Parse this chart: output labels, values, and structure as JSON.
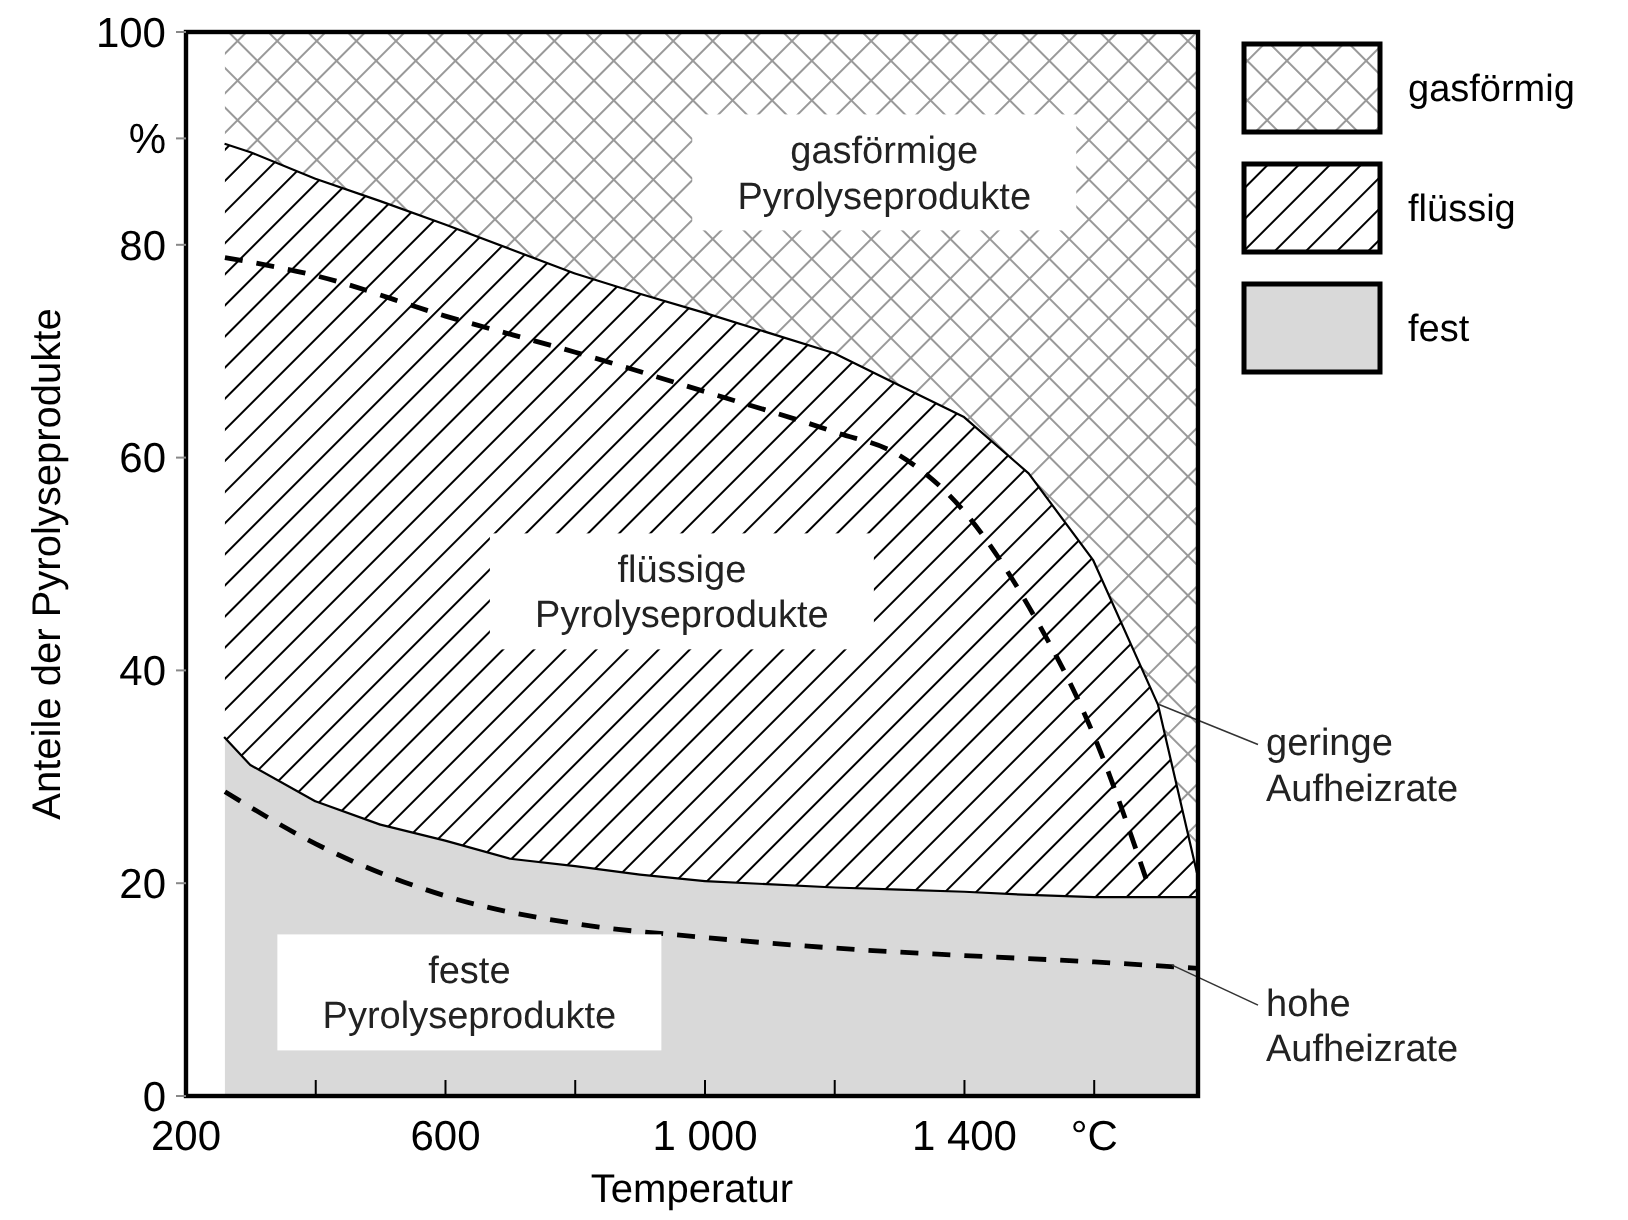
{
  "chart_data": {
    "type": "area",
    "stacked": true,
    "xlabel": "Temperatur",
    "ylabel": "Anteile der Pyrolyseprodukte",
    "x": [
      260,
      300,
      400,
      500,
      600,
      700,
      800,
      900,
      1000,
      1200,
      1300,
      1400,
      1500,
      1600,
      1700,
      1760
    ],
    "xlim": [
      200,
      1760
    ],
    "ylim": [
      0,
      100
    ],
    "xticks": [
      200,
      {
        "value": 400,
        "label": null
      },
      600,
      {
        "value": 800,
        "label": null
      },
      {
        "value": 1000,
        "label": "1 000"
      },
      {
        "value": 1200,
        "label": null
      },
      {
        "value": 1400,
        "label": "1 400"
      },
      {
        "value": 1600,
        "label": "°C"
      }
    ],
    "yticks": [
      0,
      20,
      40,
      60,
      80,
      {
        "value": 90,
        "label": "%"
      },
      100
    ],
    "legend": "top right",
    "grid": false,
    "series": [
      {
        "name": "fest",
        "color": "#d9d9d9",
        "values": [
          33.8,
          31.2,
          27.8,
          25.6,
          24.1,
          22.4,
          21.7,
          20.9,
          20.3,
          19.7,
          19.5,
          19.3,
          19.0,
          18.8,
          18.8,
          18.8
        ]
      },
      {
        "name": "flüssig",
        "color": "#000000",
        "values": [
          55.8,
          57.6,
          58.5,
          58.6,
          57.9,
          57.3,
          55.7,
          54.6,
          53.4,
          50.2,
          47.4,
          44.6,
          39.6,
          31.6,
          18.0,
          2.2
        ]
      },
      {
        "name": "gasförmig",
        "color": "#999999",
        "values": [
          10.4,
          11.2,
          13.7,
          15.8,
          18.0,
          20.3,
          22.6,
          24.5,
          26.3,
          30.1,
          33.1,
          36.1,
          41.4,
          49.6,
          63.2,
          79.0
        ]
      },
      {
        "type": "line",
        "line_style": "dashed",
        "color": "#000000",
        "x": [
          260,
          400,
          600,
          800,
          1000,
          1200,
          1300,
          1400,
          1500,
          1600,
          1685
        ],
        "values": [
          78.8,
          77.1,
          73.3,
          69.9,
          66.2,
          62.4,
          60.2,
          54.9,
          45.9,
          33.8,
          19.5
        ]
      },
      {
        "type": "line",
        "line_style": "dashed",
        "color": "#000000",
        "x": [
          260,
          400,
          600,
          800,
          1000,
          1200,
          1400,
          1600,
          1760
        ],
        "values": [
          28.6,
          23.7,
          18.8,
          16.2,
          14.9,
          13.9,
          13.2,
          12.6,
          12.0
        ]
      }
    ],
    "annotations": [
      "gasförmige\nPyrolyseprodukte",
      "flüssige\nPyrolyseprodukte",
      "feste\nPyrolyseprodukte",
      {
        "text": "geringe\nAufheizrate",
        "x": 1700,
        "y": 36.8
      },
      {
        "text": "hohe\nAufheizrate",
        "x": 1720,
        "y": 12.3
      }
    ]
  }
}
